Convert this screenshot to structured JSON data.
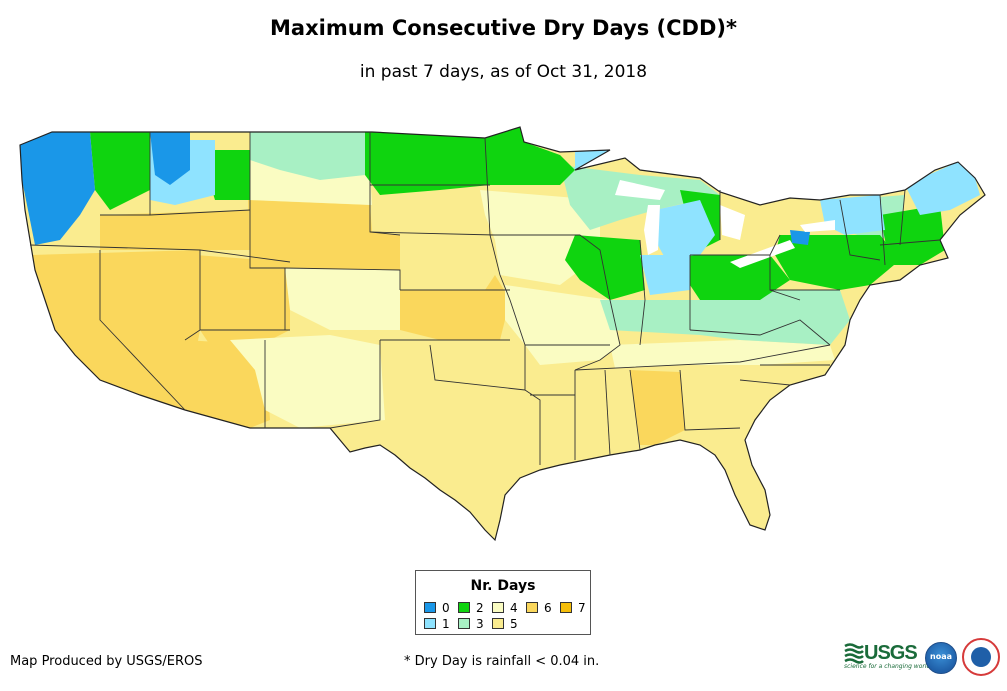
{
  "header": {
    "title": "Maximum Consecutive Dry Days (CDD)*",
    "subtitle": "in past 7 days, as of Oct 31, 2018"
  },
  "legend": {
    "title": "Nr. Days",
    "items": [
      {
        "label": "0",
        "color": "#1a97e8"
      },
      {
        "label": "1",
        "color": "#8fe3ff"
      },
      {
        "label": "2",
        "color": "#0fd40f"
      },
      {
        "label": "3",
        "color": "#a8f0c4"
      },
      {
        "label": "4",
        "color": "#fafcc2"
      },
      {
        "label": "5",
        "color": "#faec8f"
      },
      {
        "label": "6",
        "color": "#fad75c"
      },
      {
        "label": "7",
        "color": "#f5be0a"
      }
    ]
  },
  "footer": {
    "credit": "Map Produced by USGS/EROS",
    "note": "* Dry Day is rainfall < 0.04 in."
  },
  "logos": {
    "usgs": "USGS",
    "usgs_tagline": "science for a changing world",
    "noaa": "noaa"
  }
}
